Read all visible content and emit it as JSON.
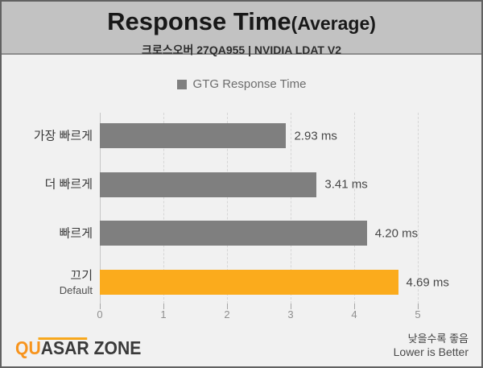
{
  "header": {
    "title_main": "Response Time",
    "title_suffix": "(Average)",
    "subtitle": "크로스오버 27QA955  |  NVIDIA LDAT V2"
  },
  "legend": {
    "label": "GTG Response Time",
    "swatch_color": "#7f7f7f"
  },
  "chart_data": {
    "type": "bar",
    "orientation": "horizontal",
    "title": "Response Time(Average)",
    "subtitle": "크로스오버 27QA955 | NVIDIA LDAT V2",
    "legend": [
      "GTG Response Time"
    ],
    "legend_position": "top-center",
    "categories": [
      "가장 빠르게",
      "더 빠르게",
      "빠르게",
      "끄기"
    ],
    "category_sublabels": [
      "",
      "",
      "",
      "Default"
    ],
    "values": [
      2.93,
      3.41,
      4.2,
      4.69
    ],
    "value_labels": [
      "2.93 ms",
      "3.41 ms",
      "4.20 ms",
      "4.69 ms"
    ],
    "bar_colors": [
      "#7f7f7f",
      "#7f7f7f",
      "#7f7f7f",
      "#fbab1c"
    ],
    "default_bar_color": "#7f7f7f",
    "highlight_color": "#fbab1c",
    "xlim": [
      0,
      5
    ],
    "x_ticks": [
      0,
      1,
      2,
      3,
      4,
      5
    ],
    "grid": "vertical-dashed",
    "xlabel": "",
    "ylabel": ""
  },
  "footer": {
    "brand_primary": "QU",
    "brand_secondary": "ASAR ZONE",
    "brand_full": "QUASAR ZONE",
    "note_ko": "낮을수록 좋음",
    "note_en": "Lower is Better"
  }
}
